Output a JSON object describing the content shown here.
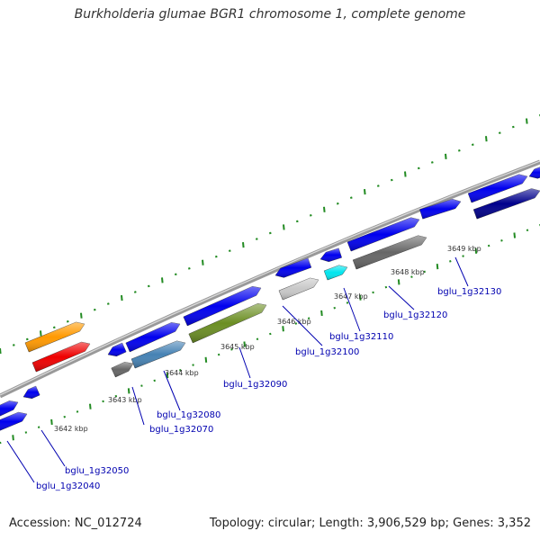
{
  "title": "Burkholderia glumae BGR1 chromosome 1, complete genome",
  "footer": {
    "accession": "Accession: NC_012724",
    "summary": "Topology: circular; Length: 3,906,529 bp; Genes: 3,352"
  },
  "scale_labels": [
    "3642 kbp",
    "3643 kbp",
    "3644 kbp",
    "3645 kbp",
    "3646 kbp",
    "3647 kbp",
    "3648 kbp",
    "3649 kbp"
  ],
  "gene_labels": [
    "bglu_1g32040",
    "bglu_1g32050",
    "bglu_1g32070",
    "bglu_1g32080",
    "bglu_1g32090",
    "bglu_1g32100",
    "bglu_1g32110",
    "bglu_1g32120",
    "bglu_1g32130"
  ],
  "colors": {
    "backbone": "#999999",
    "cds": "#0000ee",
    "dark_blue": "#00008b",
    "orange": "#ff9900",
    "red": "#ee0000",
    "olive": "#6b8e23",
    "steel": "#4682b4",
    "gray": "#666666",
    "light_gray": "#c8c8c8",
    "cyan": "#00e5ee",
    "tick": "#228b22",
    "label": "#0000b0"
  }
}
